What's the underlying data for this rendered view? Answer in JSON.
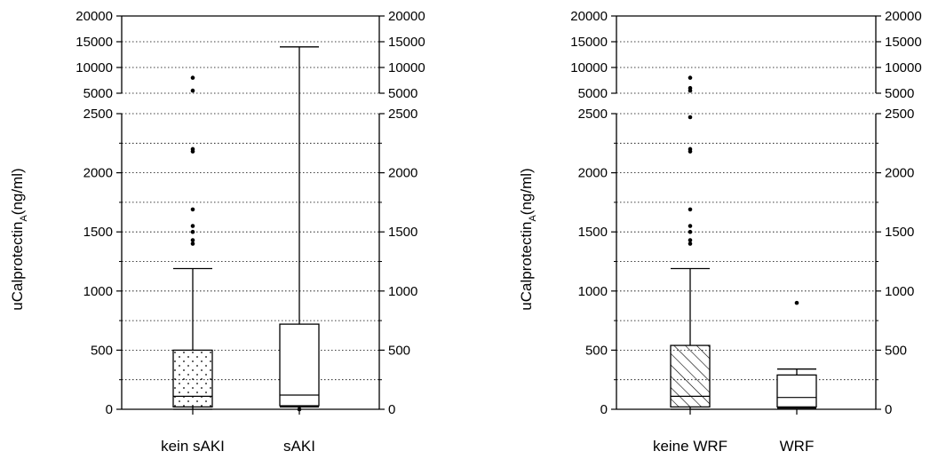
{
  "chart_data": [
    {
      "type": "box",
      "ylabel": "uCalprotectin",
      "ylabel_subscript": "A",
      "ylabel_unit": "(ng/ml)",
      "y_axis_break": [
        2500,
        5000
      ],
      "ylim_lower": [
        0,
        2500
      ],
      "ylim_upper": [
        5000,
        20000
      ],
      "y_ticks_lower": [
        "0",
        "500",
        "1000",
        "1500",
        "2000",
        "2500"
      ],
      "y_ticks_upper": [
        "5000",
        "10000",
        "15000",
        "20000"
      ],
      "grid": "horizontal dotted",
      "categories": [
        "kein sAKI",
        "sAKI"
      ],
      "boxes": [
        {
          "name": "kein sAKI",
          "whisker_low": 0,
          "q1": 20,
          "median": 110,
          "q3": 500,
          "whisker_high": 1190,
          "outliers": [
            1400,
            1430,
            1500,
            1550,
            1690,
            2180,
            2200,
            5500,
            8000
          ],
          "fill": "dots"
        },
        {
          "name": "sAKI",
          "whisker_low": 20,
          "q1": 30,
          "median": 120,
          "q3": 720,
          "whisker_high": 14000,
          "outliers": [
            0
          ],
          "fill": "none"
        }
      ]
    },
    {
      "type": "box",
      "ylabel": "uCalprotectin",
      "ylabel_subscript": "A",
      "ylabel_unit": "(ng/ml)",
      "y_axis_break": [
        2500,
        5000
      ],
      "ylim_lower": [
        0,
        2500
      ],
      "ylim_upper": [
        5000,
        20000
      ],
      "y_ticks_lower": [
        "0",
        "500",
        "1000",
        "1500",
        "2000",
        "2500"
      ],
      "y_ticks_upper": [
        "5000",
        "10000",
        "15000",
        "20000"
      ],
      "grid": "horizontal dotted",
      "categories": [
        "keine WRF",
        "WRF"
      ],
      "boxes": [
        {
          "name": "keine WRF",
          "whisker_low": 0,
          "q1": 20,
          "median": 110,
          "q3": 540,
          "whisker_high": 1190,
          "outliers": [
            1400,
            1430,
            1500,
            1550,
            1690,
            2180,
            2200,
            2470,
            5500,
            6000,
            8000
          ],
          "fill": "hatch"
        },
        {
          "name": "WRF",
          "whisker_low": 10,
          "q1": 20,
          "median": 100,
          "q3": 290,
          "whisker_high": 340,
          "outliers": [
            900
          ],
          "fill": "none"
        }
      ]
    }
  ]
}
